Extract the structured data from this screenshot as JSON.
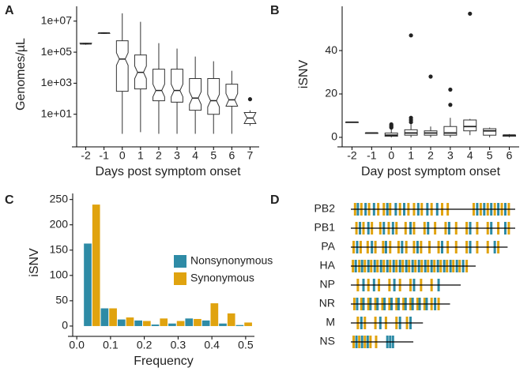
{
  "chart_data": [
    {
      "type": "box",
      "label": "A",
      "x_label": "Days post symptom onset",
      "y_label": "Genomes/µL",
      "log": true,
      "notch": true,
      "categories": [
        "-2",
        "-1",
        "0",
        "1",
        "2",
        "3",
        "4",
        "5",
        "6",
        "7"
      ],
      "ylim": [
        0.16,
        90000000
      ],
      "yticks": [
        {
          "value": 10,
          "label": "1e+01"
        },
        {
          "value": 1000,
          "label": "1e+03"
        },
        {
          "value": 100000,
          "label": "1e+05"
        },
        {
          "value": 10000000,
          "label": "1e+07"
        }
      ],
      "boxes": [
        {
          "low": 300000,
          "q1": 330000,
          "median": 350000,
          "q3": 380000,
          "high": 400000,
          "outliers": []
        },
        {
          "low": 1500000,
          "q1": 1600000,
          "median": 1700000,
          "q3": 1800000,
          "high": 1900000,
          "outliers": []
        },
        {
          "low": 0.55,
          "q1": 300,
          "median": 36000,
          "q3": 540000,
          "high": 32000000,
          "outliers": []
        },
        {
          "low": 0.7,
          "q1": 430,
          "median": 5000,
          "q3": 66000,
          "high": 9000000,
          "outliers": []
        },
        {
          "low": 0.55,
          "q1": 74,
          "median": 340,
          "q3": 8000,
          "high": 380000,
          "outliers": []
        },
        {
          "low": 0.55,
          "q1": 60,
          "median": 340,
          "q3": 8000,
          "high": 170000,
          "outliers": []
        },
        {
          "low": 0.55,
          "q1": 18,
          "median": 110,
          "q3": 2000,
          "high": 52000,
          "outliers": []
        },
        {
          "low": 0.55,
          "q1": 10,
          "median": 75,
          "q3": 2000,
          "high": 26000,
          "outliers": []
        },
        {
          "low": 0.55,
          "q1": 33,
          "median": 85,
          "q3": 870,
          "high": 6300,
          "outliers": []
        },
        {
          "low": 1.8,
          "q1": 2.5,
          "median": 5.7,
          "q3": 13,
          "high": 18,
          "outliers": [
            93
          ]
        }
      ]
    },
    {
      "type": "box",
      "label": "B",
      "x_label": "Day post symptom onset",
      "y_label": "iSNV",
      "log": false,
      "notch": false,
      "categories": [
        "-2",
        "-1",
        "0",
        "1",
        "2",
        "3",
        "4",
        "5",
        "6"
      ],
      "ylim": [
        -2.2,
        60.4
      ],
      "yticks": [
        0,
        20,
        40
      ],
      "boxes": [
        {
          "low": 7,
          "q1": 7,
          "median": 7,
          "q3": 7,
          "high": 7,
          "outliers": []
        },
        {
          "low": 2,
          "q1": 2,
          "median": 2,
          "q3": 2,
          "high": 2,
          "outliers": []
        },
        {
          "low": 0,
          "q1": 0.5,
          "median": 1,
          "q3": 2,
          "high": 4,
          "outliers": [
            4.5,
            5,
            5.5,
            6
          ]
        },
        {
          "low": 0,
          "q1": 1,
          "median": 2,
          "q3": 3.5,
          "high": 6,
          "outliers": [
            7,
            8,
            9,
            47
          ]
        },
        {
          "low": 0,
          "q1": 1,
          "median": 2,
          "q3": 3,
          "high": 5,
          "outliers": [
            28
          ]
        },
        {
          "low": 0,
          "q1": 1,
          "median": 2,
          "q3": 5,
          "high": 9,
          "outliers": [
            15,
            22
          ]
        },
        {
          "low": 1,
          "q1": 3,
          "median": 5,
          "q3": 8,
          "high": 8.5,
          "outliers": [
            57
          ]
        },
        {
          "low": 0,
          "q1": 1,
          "median": 3,
          "q3": 4,
          "high": 4.5,
          "outliers": []
        },
        {
          "low": 0,
          "q1": 0.5,
          "median": 1,
          "q3": 1,
          "high": 1.5,
          "outliers": []
        }
      ]
    },
    {
      "type": "histogram",
      "label": "C",
      "x_label": "Frequency",
      "y_label": "iSNV",
      "bins": [
        0.02,
        0.07,
        0.12,
        0.17,
        0.22,
        0.27,
        0.32,
        0.37,
        0.42,
        0.47,
        0.52
      ],
      "xlim": [
        -0.012,
        0.526
      ],
      "xticks": [
        {
          "value": 0,
          "label": "0.0"
        },
        0.1,
        0.2,
        0.3,
        0.4,
        0.5
      ],
      "ylim": [
        -11,
        262
      ],
      "yticks": [
        0,
        50,
        100,
        150,
        200,
        250
      ],
      "series": [
        {
          "name": "Nonsynonymous",
          "color": "#2e8ba6",
          "values": [
            163,
            35,
            13,
            11,
            3,
            5,
            15,
            11,
            5,
            2
          ]
        },
        {
          "name": "Synonymous",
          "color": "#e0a30f",
          "values": [
            240,
            35,
            17,
            10,
            15,
            10,
            14,
            45,
            25,
            7
          ]
        }
      ]
    },
    {
      "type": "segments",
      "label": "D",
      "nonsyn_color": "#2e8ba6",
      "syn_color": "#e0a30f",
      "segments": [
        {
          "name": "PB2",
          "length": 2341,
          "syn": [
            60,
            150,
            260,
            390,
            470,
            560,
            700,
            820,
            900,
            1010,
            1150,
            1300,
            1380,
            1750,
            1850,
            1950,
            2050,
            2150,
            2250
          ],
          "nonsyn": [
            100,
            210,
            330,
            520,
            640,
            760,
            960,
            1090,
            1230,
            1800,
            1900,
            2000,
            2100,
            2200
          ]
        },
        {
          "name": "PB1",
          "length": 2341,
          "syn": [
            80,
            180,
            300,
            420,
            540,
            650,
            780,
            900,
            1050,
            1200,
            1350,
            1500,
            1650,
            1800,
            1950,
            2100,
            2250
          ],
          "nonsyn": [
            130,
            250,
            470,
            600,
            850,
            1100,
            1400,
            1700,
            2000,
            2200
          ]
        },
        {
          "name": "PA",
          "length": 2233,
          "syn": [
            40,
            140,
            240,
            350,
            460,
            560,
            680,
            790,
            900,
            1000,
            1120,
            1250,
            1380,
            1500,
            1650,
            1800,
            1950,
            2100
          ],
          "nonsyn": [
            90,
            300,
            500,
            730,
            950,
            1300,
            1700,
            2050
          ]
        },
        {
          "name": "HA",
          "length": 1778,
          "syn": [
            30,
            120,
            200,
            290,
            380,
            470,
            560,
            650,
            740,
            830,
            920,
            1010,
            1100,
            1190,
            1280,
            1370,
            1460,
            1550,
            1650
          ],
          "nonsyn": [
            70,
            160,
            250,
            340,
            430,
            520,
            610,
            700,
            790,
            880,
            970,
            1060,
            1150,
            1240,
            1330,
            1420,
            1510,
            1600
          ]
        },
        {
          "name": "NP",
          "length": 1565,
          "syn": [
            100,
            250,
            400,
            550,
            700,
            850,
            1000,
            1150
          ],
          "nonsyn": [
            180,
            330,
            620,
            900,
            1250
          ]
        },
        {
          "name": "NR",
          "length": 1413,
          "syn": [
            50,
            150,
            250,
            350,
            450,
            550,
            650,
            750,
            850,
            950,
            1050,
            1150,
            1250
          ],
          "nonsyn": [
            90,
            180,
            280,
            380,
            480,
            580,
            680,
            780,
            880,
            980,
            1080,
            1200
          ]
        },
        {
          "name": "M",
          "length": 1027,
          "syn": [
            100,
            200,
            350,
            500,
            650,
            800
          ],
          "nonsyn": [
            150,
            420,
            700,
            850
          ]
        },
        {
          "name": "NS",
          "length": 890,
          "syn": [
            40,
            120,
            200,
            280,
            360
          ],
          "nonsyn": [
            80,
            160,
            240,
            520,
            560,
            600
          ]
        }
      ]
    }
  ]
}
